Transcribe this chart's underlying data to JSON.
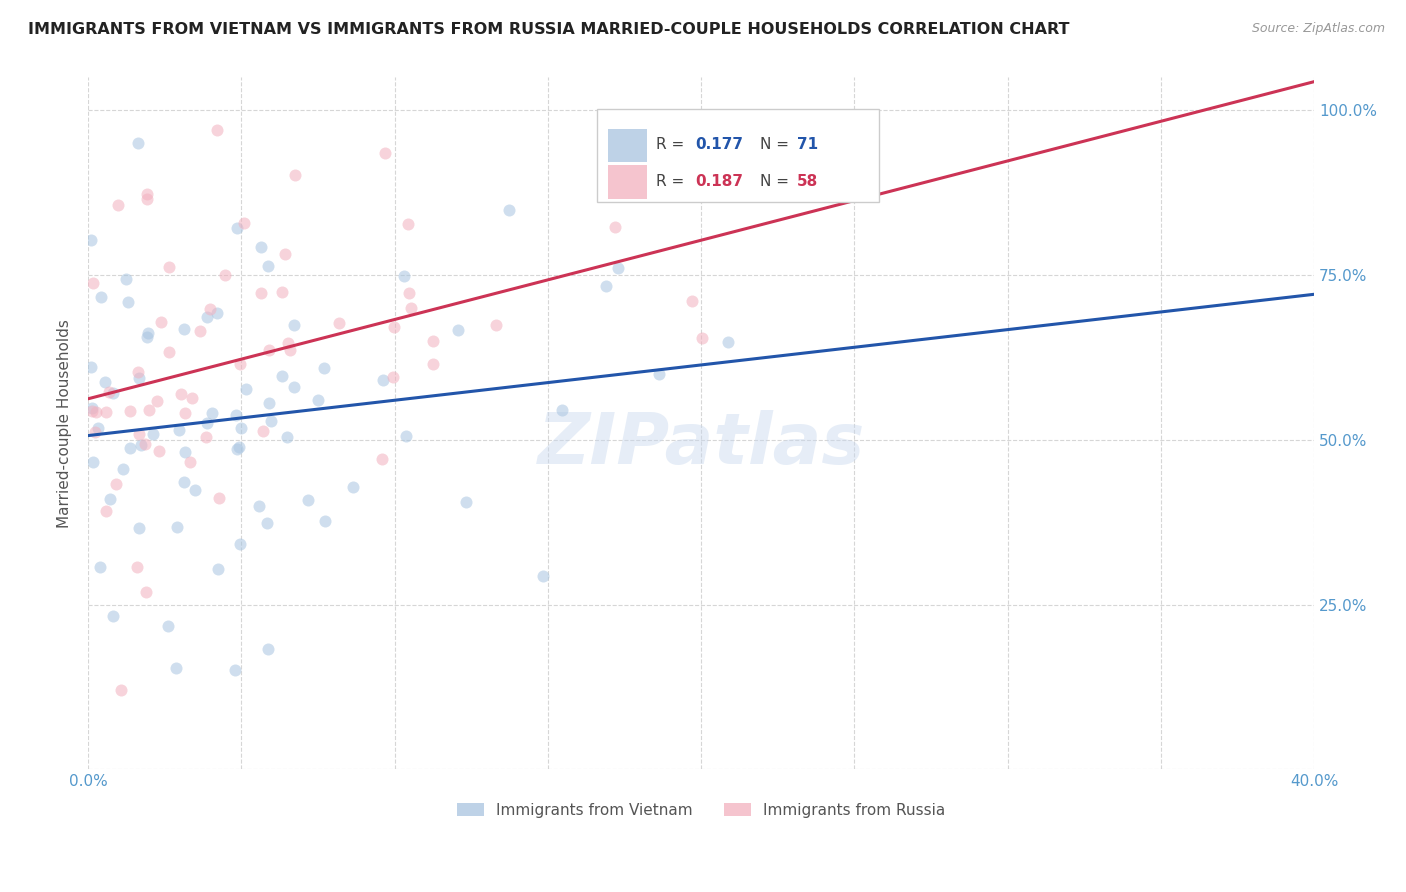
{
  "title": "IMMIGRANTS FROM VIETNAM VS IMMIGRANTS FROM RUSSIA MARRIED-COUPLE HOUSEHOLDS CORRELATION CHART",
  "source": "Source: ZipAtlas.com",
  "ylabel": "Married-couple Households",
  "xlim": [
    0,
    0.4
  ],
  "ylim": [
    0,
    1.05
  ],
  "yticks": [
    0.0,
    0.25,
    0.5,
    0.75,
    1.0
  ],
  "ytick_labels_right": [
    "",
    "25.0%",
    "50.0%",
    "75.0%",
    "100.0%"
  ],
  "xticks": [
    0.0,
    0.05,
    0.1,
    0.15,
    0.2,
    0.25,
    0.3,
    0.35,
    0.4
  ],
  "xtick_labels": [
    "0.0%",
    "",
    "",
    "",
    "",
    "",
    "",
    "",
    "40.0%"
  ],
  "watermark": "ZIPatlas",
  "vietnam_color": "#a8c4e0",
  "russia_color": "#f2b0be",
  "vietnam_line_color": "#2255aa",
  "russia_line_color": "#cc3355",
  "background_color": "#ffffff",
  "grid_color": "#cccccc",
  "title_color": "#222222",
  "title_fontsize": 11.5,
  "axis_label_color": "#5599cc",
  "marker_size": 75,
  "marker_alpha": 0.55,
  "vietnam_R": 0.177,
  "russia_R": 0.187,
  "vietnam_N": 71,
  "russia_N": 58,
  "legend_vietnam_label": "Immigrants from Vietnam",
  "legend_russia_label": "Immigrants from Russia"
}
